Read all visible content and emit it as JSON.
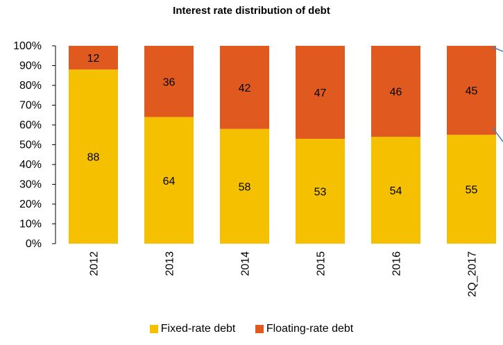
{
  "chart_data": {
    "type": "bar",
    "stacked": true,
    "title": "Interest rate distribution of debt",
    "categories": [
      "2012",
      "2013",
      "2014",
      "2015",
      "2016",
      "2Q_2017"
    ],
    "series": [
      {
        "name": "Fixed-rate debt",
        "values": [
          88,
          64,
          58,
          53,
          54,
          55
        ],
        "color": "#F5C000"
      },
      {
        "name": "Floating-rate debt",
        "values": [
          12,
          36,
          42,
          47,
          46,
          45
        ],
        "color": "#E05A20"
      }
    ],
    "y_ticks": [
      "0%",
      "10%",
      "20%",
      "30%",
      "40%",
      "50%",
      "60%",
      "70%",
      "80%",
      "90%",
      "100%"
    ],
    "ylim": [
      0,
      100
    ],
    "legend_position": "bottom",
    "grid": false
  },
  "connector_color": "#4A7FB5"
}
